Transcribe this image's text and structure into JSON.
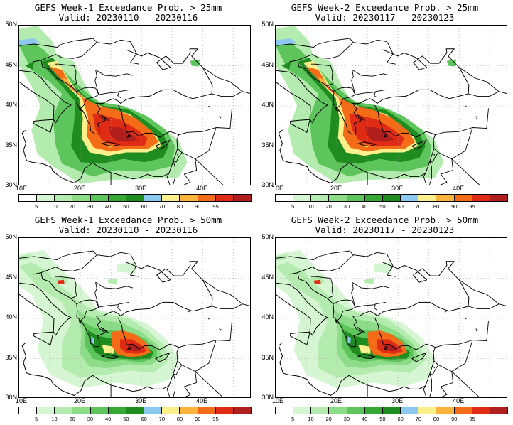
{
  "panels": [
    {
      "id": "p1",
      "title": "GEFS Week-1 Exceedance Prob. > 25mm",
      "valid": "Valid: 20230110 - 20230116",
      "threshold": 25
    },
    {
      "id": "p2",
      "title": "GEFS Week-2 Exceedance Prob. > 25mm",
      "valid": "Valid: 20230117 - 20230123",
      "threshold": 25
    },
    {
      "id": "p3",
      "title": "GEFS Week-1 Exceedance Prob. > 50mm",
      "valid": "Valid: 20230110 - 20230116",
      "threshold": 50
    },
    {
      "id": "p4",
      "title": "GEFS Week-2 Exceedance Prob. > 50mm",
      "valid": "Valid: 20230117 - 20230123",
      "threshold": 50
    }
  ],
  "lat_labels": [
    "50N",
    "45N",
    "40N",
    "35N",
    "30N"
  ],
  "lon_labels": [
    "10E",
    "20E",
    "30E",
    "40E"
  ],
  "colorbar": {
    "ticks": [
      "5",
      "10",
      "20",
      "30",
      "40",
      "50",
      "60",
      "70",
      "80",
      "90",
      "95"
    ],
    "colors": [
      "#ffffff",
      "#d6f5d2",
      "#b4ecb0",
      "#8cdc88",
      "#5ec45c",
      "#36a836",
      "#1e8c1e",
      "#8cc8f0",
      "#fcf08c",
      "#fcb43c",
      "#f46c18",
      "#e02c14",
      "#b01e1e"
    ]
  }
}
